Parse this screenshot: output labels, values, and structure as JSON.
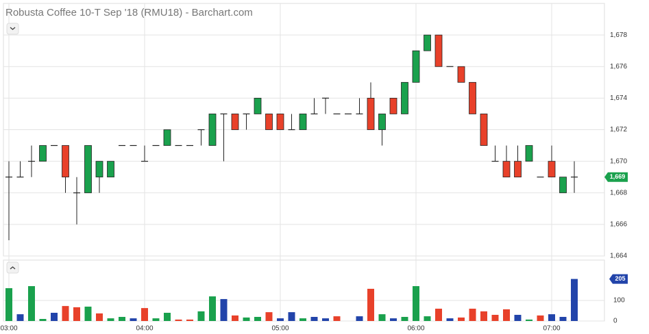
{
  "chart_data": [
    {
      "type": "candlestick",
      "title": "Robusta Coffee 10-T Sep '18 (RMU18) - Barchart.com",
      "categories": [
        "03:00",
        null,
        null,
        null,
        null,
        null,
        null,
        null,
        null,
        null,
        null,
        null,
        "04:00",
        null,
        null,
        null,
        null,
        null,
        null,
        null,
        null,
        null,
        null,
        null,
        "05:00",
        null,
        null,
        null,
        null,
        null,
        null,
        null,
        null,
        null,
        null,
        null,
        "06:00",
        null,
        null,
        null,
        null,
        null,
        null,
        null,
        null,
        null,
        null,
        null,
        "07:00",
        null,
        null
      ],
      "open": [
        1669,
        1669,
        1670,
        1670,
        1671,
        1671,
        1668,
        1668,
        1669,
        1669,
        1671,
        1671,
        1670,
        1671,
        1671,
        1671,
        1671,
        1672,
        1671,
        1673,
        1673,
        1673,
        1673,
        1673,
        1673,
        1672,
        1672,
        1673,
        1674,
        1673,
        1673,
        1673,
        1674,
        1672,
        1674,
        1673,
        1675,
        1677,
        1678,
        1676,
        1676,
        1675,
        1673,
        1670,
        1670,
        1670,
        1670,
        1669,
        1670,
        1668,
        1669
      ],
      "high": [
        1670,
        1670,
        1671,
        1671,
        1671,
        1671,
        1669,
        1671,
        1670,
        1670,
        1671,
        1671,
        1671,
        1671,
        1672,
        1671,
        1671,
        1672,
        1673,
        1673,
        1673,
        1673,
        1674,
        1673,
        1673,
        1673,
        1673,
        1674,
        1674,
        1673,
        1673,
        1674,
        1675,
        1673,
        1674,
        1675,
        1677,
        1678,
        1678,
        1676,
        1676,
        1675,
        1673,
        1671,
        1671,
        1671,
        1671,
        1669,
        1671,
        1669,
        1670
      ],
      "low": [
        1665,
        1669,
        1669,
        1670,
        1671,
        1668,
        1666,
        1668,
        1668,
        1669,
        1671,
        1671,
        1670,
        1671,
        1671,
        1671,
        1671,
        1671,
        1671,
        1670,
        1672,
        1672,
        1673,
        1672,
        1672,
        1672,
        1672,
        1673,
        1673,
        1673,
        1673,
        1673,
        1672,
        1671,
        1673,
        1673,
        1675,
        1677,
        1676,
        1676,
        1675,
        1673,
        1671,
        1670,
        1669,
        1669,
        1670,
        1669,
        1669,
        1668,
        1668
      ],
      "close": [
        1669,
        1669,
        1670,
        1671,
        1671,
        1669,
        1668,
        1671,
        1670,
        1670,
        1671,
        1671,
        1670,
        1671,
        1672,
        1671,
        1671,
        1672,
        1673,
        1673,
        1672,
        1673,
        1674,
        1672,
        1672,
        1672,
        1673,
        1673,
        1674,
        1673,
        1673,
        1673,
        1672,
        1673,
        1673,
        1675,
        1677,
        1678,
        1676,
        1676,
        1675,
        1673,
        1671,
        1670,
        1669,
        1669,
        1671,
        1669,
        1669,
        1669,
        1669
      ],
      "up_color": "#1aa14d",
      "down_color": "#e8412a",
      "doji_color": "#222222",
      "ylim": [
        1664,
        1680
      ],
      "yticks": [
        {
          "value": 1664,
          "label": "1,664"
        },
        {
          "value": 1666,
          "label": "1,666"
        },
        {
          "value": 1668,
          "label": "1,668"
        },
        {
          "value": 1670,
          "label": "1,670"
        },
        {
          "value": 1672,
          "label": "1,672"
        },
        {
          "value": 1674,
          "label": "1,674"
        },
        {
          "value": 1676,
          "label": "1,676"
        },
        {
          "value": 1678,
          "label": "1,678"
        }
      ],
      "last": {
        "value": 1669,
        "label": "1,669"
      },
      "grid": true
    },
    {
      "type": "bar",
      "values": [
        160,
        33,
        170,
        10,
        40,
        73,
        67,
        70,
        37,
        13,
        20,
        13,
        63,
        13,
        40,
        7,
        7,
        47,
        120,
        107,
        27,
        17,
        20,
        43,
        13,
        43,
        13,
        20,
        13,
        23,
        0,
        23,
        157,
        33,
        13,
        20,
        170,
        23,
        60,
        13,
        17,
        60,
        47,
        30,
        57,
        30,
        7,
        27,
        33,
        20,
        205
      ],
      "colors": [
        "#1aa14d",
        "#2244aa",
        "#1aa14d",
        "#1aa14d",
        "#2244aa",
        "#e8412a",
        "#e8412a",
        "#1aa14d",
        "#e8412a",
        "#1aa14d",
        "#1aa14d",
        "#2244aa",
        "#e8412a",
        "#1aa14d",
        "#1aa14d",
        "#e8412a",
        "#e8412a",
        "#1aa14d",
        "#1aa14d",
        "#2244aa",
        "#e8412a",
        "#1aa14d",
        "#1aa14d",
        "#e8412a",
        "#2244aa",
        "#2244aa",
        "#1aa14d",
        "#2244aa",
        "#2244aa",
        "#e8412a",
        "#2244aa",
        "#2244aa",
        "#e8412a",
        "#1aa14d",
        "#2244aa",
        "#1aa14d",
        "#1aa14d",
        "#1aa14d",
        "#e8412a",
        "#2244aa",
        "#e8412a",
        "#e8412a",
        "#e8412a",
        "#e8412a",
        "#e8412a",
        "#2244aa",
        "#1aa14d",
        "#e8412a",
        "#2244aa",
        "#2244aa",
        "#2244aa"
      ],
      "ylim": [
        0,
        297
      ],
      "yticks": [
        0,
        100
      ],
      "last": 205,
      "grid": true
    }
  ]
}
